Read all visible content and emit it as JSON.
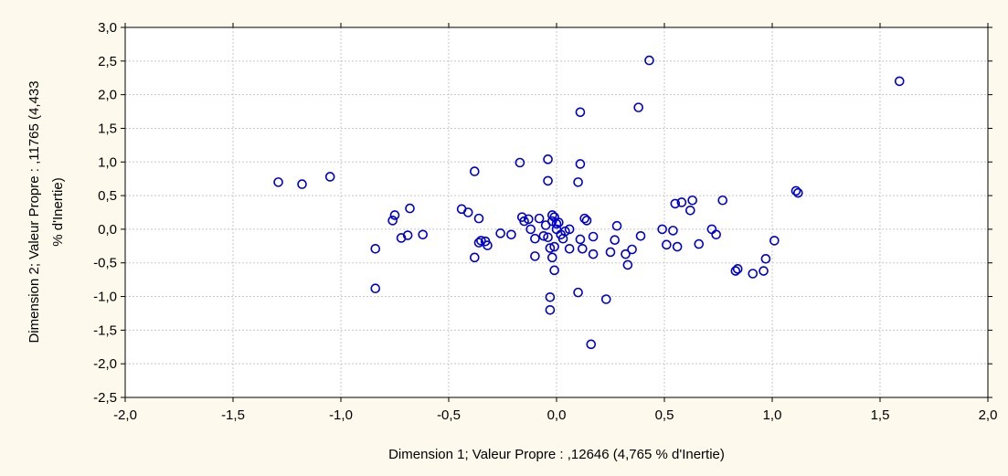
{
  "chart_data": {
    "type": "scatter",
    "title": "",
    "xlabel": "Dimension 1; Valeur Propre : ,12646 (4,765  % d'Inertie)",
    "ylabel_lines": [
      "Dimension 2; Valeur Propre : ,11765 (4,433",
      "% d'Inertie)"
    ],
    "xlim": [
      -2.0,
      2.0
    ],
    "ylim": [
      -2.5,
      3.0
    ],
    "x_ticks": [
      -2.0,
      -1.5,
      -1.0,
      -0.5,
      0.0,
      0.5,
      1.0,
      1.5,
      2.0
    ],
    "x_tick_labels": [
      "-2,0",
      "-1,5",
      "-1,0",
      "-0,5",
      "0,0",
      "0,5",
      "1,0",
      "1,5",
      "2,0"
    ],
    "y_ticks": [
      3.0,
      2.5,
      2.0,
      1.5,
      1.0,
      0.5,
      0.0,
      -0.5,
      -1.0,
      -1.5,
      -2.0,
      -2.5
    ],
    "y_tick_labels": [
      "3,0",
      "2,5",
      "2,0",
      "1,5",
      "1,0",
      "0,5",
      "0,0",
      "-0,5",
      "-1,0",
      "-1,5",
      "-2,0",
      "-2,5"
    ],
    "grid": true,
    "marker": "open-circle",
    "marker_color": "#0000cc",
    "grid_color": "#c8c8c8",
    "plot_background": "#ffffff",
    "points": [
      {
        "x": -1.29,
        "y": 0.7
      },
      {
        "x": -1.18,
        "y": 0.67
      },
      {
        "x": -1.05,
        "y": 0.78
      },
      {
        "x": -0.84,
        "y": -0.29
      },
      {
        "x": -0.84,
        "y": -0.88
      },
      {
        "x": -0.76,
        "y": 0.13
      },
      {
        "x": -0.75,
        "y": 0.21
      },
      {
        "x": -0.72,
        "y": -0.13
      },
      {
        "x": -0.69,
        "y": -0.09
      },
      {
        "x": -0.68,
        "y": 0.31
      },
      {
        "x": -0.62,
        "y": -0.08
      },
      {
        "x": -0.44,
        "y": 0.3
      },
      {
        "x": -0.41,
        "y": 0.25
      },
      {
        "x": -0.38,
        "y": 0.86
      },
      {
        "x": -0.38,
        "y": -0.42
      },
      {
        "x": -0.36,
        "y": 0.16
      },
      {
        "x": -0.36,
        "y": -0.2
      },
      {
        "x": -0.35,
        "y": -0.17
      },
      {
        "x": -0.33,
        "y": -0.18
      },
      {
        "x": -0.32,
        "y": -0.24
      },
      {
        "x": -0.26,
        "y": -0.06
      },
      {
        "x": -0.21,
        "y": -0.08
      },
      {
        "x": -0.17,
        "y": 0.99
      },
      {
        "x": -0.16,
        "y": 0.18
      },
      {
        "x": -0.15,
        "y": 0.12
      },
      {
        "x": -0.13,
        "y": 0.15
      },
      {
        "x": -0.12,
        "y": 0.0
      },
      {
        "x": -0.1,
        "y": -0.14
      },
      {
        "x": -0.1,
        "y": -0.4
      },
      {
        "x": -0.08,
        "y": 0.16
      },
      {
        "x": -0.06,
        "y": -0.1
      },
      {
        "x": -0.05,
        "y": 0.06
      },
      {
        "x": -0.04,
        "y": 1.04
      },
      {
        "x": -0.04,
        "y": 0.72
      },
      {
        "x": -0.04,
        "y": -0.12
      },
      {
        "x": -0.03,
        "y": -0.28
      },
      {
        "x": -0.03,
        "y": -1.01
      },
      {
        "x": -0.03,
        "y": -1.2
      },
      {
        "x": -0.02,
        "y": 0.21
      },
      {
        "x": -0.02,
        "y": 0.12
      },
      {
        "x": -0.02,
        "y": -0.42
      },
      {
        "x": -0.01,
        "y": 0.18
      },
      {
        "x": -0.01,
        "y": -0.26
      },
      {
        "x": -0.01,
        "y": -0.61
      },
      {
        "x": 0.0,
        "y": 0.08
      },
      {
        "x": 0.0,
        "y": 0.0
      },
      {
        "x": 0.01,
        "y": 0.1
      },
      {
        "x": 0.02,
        "y": -0.08
      },
      {
        "x": 0.03,
        "y": -0.14
      },
      {
        "x": 0.04,
        "y": -0.03
      },
      {
        "x": 0.06,
        "y": -0.29
      },
      {
        "x": 0.06,
        "y": 0.0
      },
      {
        "x": 0.1,
        "y": 0.7
      },
      {
        "x": 0.1,
        "y": -0.94
      },
      {
        "x": 0.11,
        "y": 1.74
      },
      {
        "x": 0.11,
        "y": 0.97
      },
      {
        "x": 0.11,
        "y": -0.15
      },
      {
        "x": 0.12,
        "y": -0.29
      },
      {
        "x": 0.13,
        "y": 0.16
      },
      {
        "x": 0.14,
        "y": 0.13
      },
      {
        "x": 0.16,
        "y": -1.71
      },
      {
        "x": 0.17,
        "y": -0.37
      },
      {
        "x": 0.17,
        "y": -0.11
      },
      {
        "x": 0.23,
        "y": -1.04
      },
      {
        "x": 0.25,
        "y": -0.34
      },
      {
        "x": 0.27,
        "y": -0.16
      },
      {
        "x": 0.28,
        "y": 0.05
      },
      {
        "x": 0.32,
        "y": -0.37
      },
      {
        "x": 0.33,
        "y": -0.53
      },
      {
        "x": 0.35,
        "y": -0.3
      },
      {
        "x": 0.38,
        "y": 1.81
      },
      {
        "x": 0.39,
        "y": -0.1
      },
      {
        "x": 0.43,
        "y": 2.51
      },
      {
        "x": 0.49,
        "y": 0.0
      },
      {
        "x": 0.51,
        "y": -0.23
      },
      {
        "x": 0.54,
        "y": -0.02
      },
      {
        "x": 0.55,
        "y": 0.38
      },
      {
        "x": 0.56,
        "y": -0.26
      },
      {
        "x": 0.58,
        "y": 0.4
      },
      {
        "x": 0.62,
        "y": 0.28
      },
      {
        "x": 0.63,
        "y": 0.43
      },
      {
        "x": 0.66,
        "y": -0.22
      },
      {
        "x": 0.72,
        "y": 0.0
      },
      {
        "x": 0.74,
        "y": -0.08
      },
      {
        "x": 0.77,
        "y": 0.43
      },
      {
        "x": 0.83,
        "y": -0.62
      },
      {
        "x": 0.84,
        "y": -0.59
      },
      {
        "x": 0.91,
        "y": -0.66
      },
      {
        "x": 0.96,
        "y": -0.62
      },
      {
        "x": 0.97,
        "y": -0.44
      },
      {
        "x": 1.01,
        "y": -0.17
      },
      {
        "x": 1.11,
        "y": 0.57
      },
      {
        "x": 1.12,
        "y": 0.54
      },
      {
        "x": 1.59,
        "y": 2.2
      }
    ]
  }
}
